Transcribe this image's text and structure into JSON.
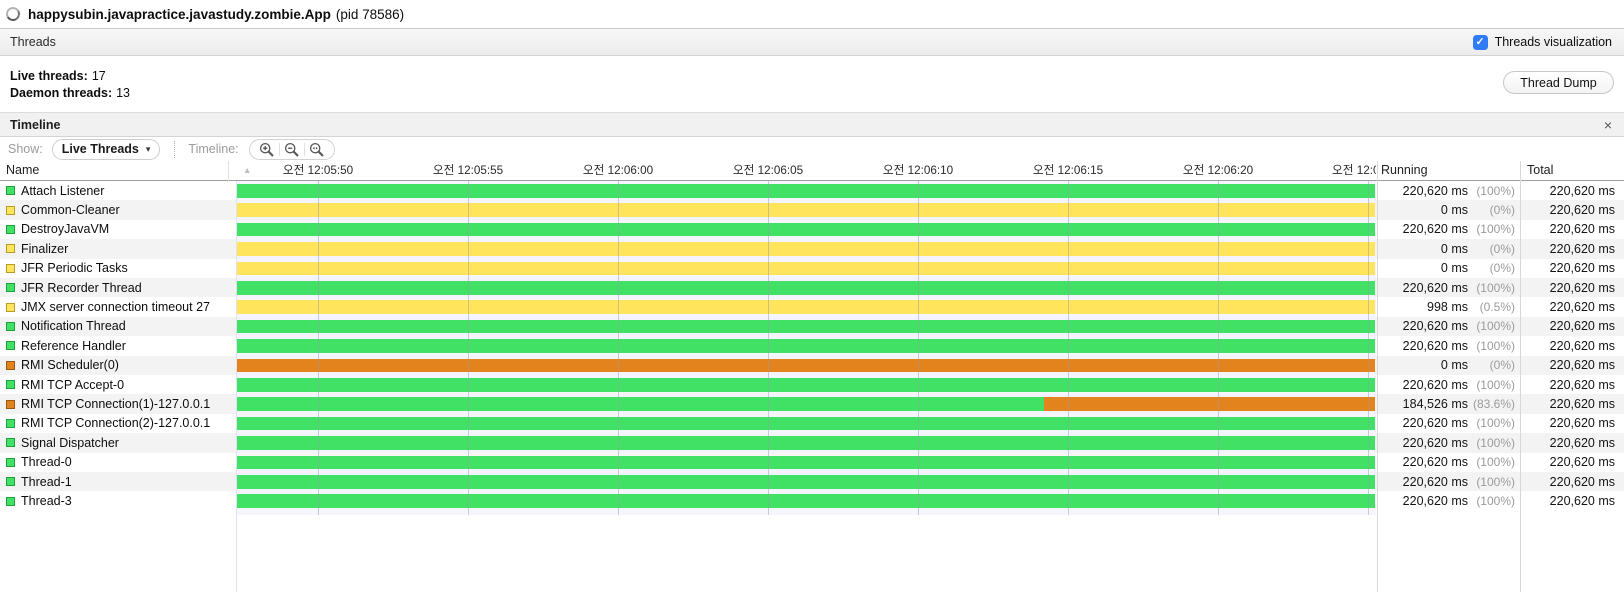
{
  "window": {
    "title": "happysubin.javapractice.javastudy.zombie.App",
    "pid_suffix": "(pid 78586)"
  },
  "threads_section": {
    "header": "Threads",
    "checkbox_glyph": "✓",
    "visualization_label": "Threads visualization",
    "live_label": "Live threads:",
    "live_value": "17",
    "daemon_label": "Daemon threads:",
    "daemon_value": "13",
    "thread_dump_button": "Thread Dump"
  },
  "timeline_section": {
    "header": "Timeline",
    "close_glyph": "×",
    "show_label": "Show:",
    "show_value": "Live Threads",
    "dropdown_glyph": "▾",
    "timeline_label": "Timeline:",
    "zoom_icons": [
      "zoom-in-icon",
      "zoom-out-icon",
      "zoom-fit-icon"
    ]
  },
  "table": {
    "columns": {
      "name": "Name",
      "running": "Running",
      "total": "Total"
    },
    "sort_icon": "▲",
    "time_ticks": [
      "오전 12:05:50",
      "오전 12:05:55",
      "오전 12:06:00",
      "오전 12:06:05",
      "오전 12:06:10",
      "오전 12:06:15",
      "오전 12:06:20",
      "오전 12:0"
    ],
    "rows": [
      {
        "name": "Attach Listener",
        "state": "running",
        "segments": [
          {
            "state": "running",
            "pct": 100
          }
        ],
        "running": "220,620 ms",
        "running_pct": "(100%)",
        "total": "220,620 ms"
      },
      {
        "name": "Common-Cleaner",
        "state": "sleeping",
        "segments": [
          {
            "state": "sleeping",
            "pct": 100
          }
        ],
        "running": "0 ms",
        "running_pct": "(0%)",
        "total": "220,620 ms"
      },
      {
        "name": "DestroyJavaVM",
        "state": "running",
        "segments": [
          {
            "state": "running",
            "pct": 100
          }
        ],
        "running": "220,620 ms",
        "running_pct": "(100%)",
        "total": "220,620 ms"
      },
      {
        "name": "Finalizer",
        "state": "sleeping",
        "segments": [
          {
            "state": "sleeping",
            "pct": 100
          }
        ],
        "running": "0 ms",
        "running_pct": "(0%)",
        "total": "220,620 ms"
      },
      {
        "name": "JFR Periodic Tasks",
        "state": "sleeping",
        "segments": [
          {
            "state": "sleeping",
            "pct": 100
          }
        ],
        "running": "0 ms",
        "running_pct": "(0%)",
        "total": "220,620 ms"
      },
      {
        "name": "JFR Recorder Thread",
        "state": "running",
        "segments": [
          {
            "state": "running",
            "pct": 100
          }
        ],
        "running": "220,620 ms",
        "running_pct": "(100%)",
        "total": "220,620 ms"
      },
      {
        "name": "JMX server connection timeout 27",
        "state": "sleeping",
        "segments": [
          {
            "state": "sleeping",
            "pct": 100
          }
        ],
        "running": "998 ms",
        "running_pct": "(0.5%)",
        "total": "220,620 ms"
      },
      {
        "name": "Notification Thread",
        "state": "running",
        "segments": [
          {
            "state": "running",
            "pct": 100
          }
        ],
        "running": "220,620 ms",
        "running_pct": "(100%)",
        "total": "220,620 ms"
      },
      {
        "name": "Reference Handler",
        "state": "running",
        "segments": [
          {
            "state": "running",
            "pct": 100
          }
        ],
        "running": "220,620 ms",
        "running_pct": "(100%)",
        "total": "220,620 ms"
      },
      {
        "name": "RMI Scheduler(0)",
        "state": "monitor",
        "segments": [
          {
            "state": "monitor",
            "pct": 100
          }
        ],
        "running": "0 ms",
        "running_pct": "(0%)",
        "total": "220,620 ms"
      },
      {
        "name": "RMI TCP Accept-0",
        "state": "running",
        "segments": [
          {
            "state": "running",
            "pct": 100
          }
        ],
        "running": "220,620 ms",
        "running_pct": "(100%)",
        "total": "220,620 ms"
      },
      {
        "name": "RMI TCP Connection(1)-127.0.0.1",
        "state": "monitor",
        "segments": [
          {
            "state": "running",
            "pct": 70.9
          },
          {
            "state": "monitor",
            "pct": 29.1
          }
        ],
        "running": "184,526 ms",
        "running_pct": "(83.6%)",
        "total": "220,620 ms"
      },
      {
        "name": "RMI TCP Connection(2)-127.0.0.1",
        "state": "running",
        "segments": [
          {
            "state": "running",
            "pct": 100
          }
        ],
        "running": "220,620 ms",
        "running_pct": "(100%)",
        "total": "220,620 ms"
      },
      {
        "name": "Signal Dispatcher",
        "state": "running",
        "segments": [
          {
            "state": "running",
            "pct": 100
          }
        ],
        "running": "220,620 ms",
        "running_pct": "(100%)",
        "total": "220,620 ms"
      },
      {
        "name": "Thread-0",
        "state": "running",
        "segments": [
          {
            "state": "running",
            "pct": 100
          }
        ],
        "running": "220,620 ms",
        "running_pct": "(100%)",
        "total": "220,620 ms"
      },
      {
        "name": "Thread-1",
        "state": "running",
        "segments": [
          {
            "state": "running",
            "pct": 100
          }
        ],
        "running": "220,620 ms",
        "running_pct": "(100%)",
        "total": "220,620 ms"
      },
      {
        "name": "Thread-3",
        "state": "running",
        "segments": [
          {
            "state": "running",
            "pct": 100
          }
        ],
        "running": "220,620 ms",
        "running_pct": "(100%)",
        "total": "220,620 ms"
      }
    ]
  },
  "colors": {
    "checkbox_blue": "#2f7cf6",
    "states": {
      "running": {
        "fill": "#40E164",
        "border": "#1FA23E"
      },
      "sleeping": {
        "fill": "#FFE45C",
        "border": "#B89E22"
      },
      "monitor": {
        "fill": "#E2831D",
        "border": "#99590F"
      }
    }
  }
}
